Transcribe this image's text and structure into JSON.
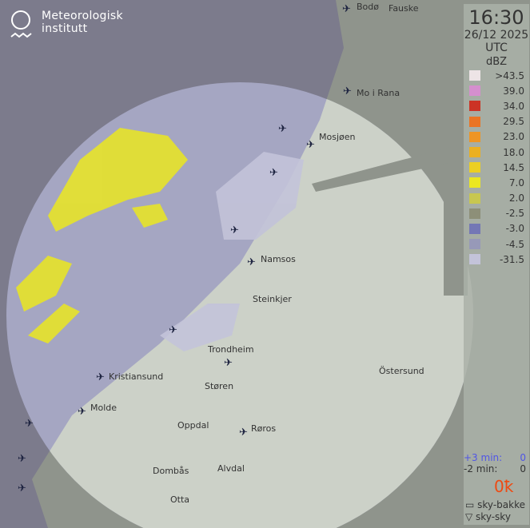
{
  "logo": {
    "line1": "Meteorologisk",
    "line2": "institutt"
  },
  "legend": {
    "time": "16:30",
    "date": "26/12 2025",
    "tz": "UTC",
    "unit": "dBZ",
    "scale": [
      {
        "label": ">43.5",
        "color": "#ede4e6"
      },
      {
        "label": "39.0",
        "color": "#d58fce"
      },
      {
        "label": "34.0",
        "color": "#cc3325"
      },
      {
        "label": "29.5",
        "color": "#ea7424"
      },
      {
        "label": "23.0",
        "color": "#ee9524"
      },
      {
        "label": "18.0",
        "color": "#ebb020"
      },
      {
        "label": "14.5",
        "color": "#eccf22"
      },
      {
        "label": "7.0",
        "color": "#ebe721"
      },
      {
        "label": "2.0",
        "color": "#c8c750"
      },
      {
        "label": "-2.5",
        "color": "#8d8f78"
      },
      {
        "label": "-3.0",
        "color": "#7477b5"
      },
      {
        "label": "-4.5",
        "color": "#9799b8"
      },
      {
        "label": "-31.5",
        "color": "#c3c3d9"
      }
    ]
  },
  "lightning": {
    "plus3_label": "+3 min:",
    "plus3_value": "0",
    "minus2_label": "-2 min:",
    "minus2_value": "0",
    "count": "0",
    "sky_bakke": "sky-bakke",
    "sky_sky": "sky-sky"
  },
  "cities": [
    "Bodø",
    "Fauske",
    "Mo i Rana",
    "Mosjøen",
    "Namsos",
    "Steinkjer",
    "Trondheim",
    "Kristiansund",
    "Molde",
    "Støren",
    "Oppdal",
    "Røros",
    "Östersund",
    "Dombås",
    "Alvdal",
    "Otta"
  ]
}
